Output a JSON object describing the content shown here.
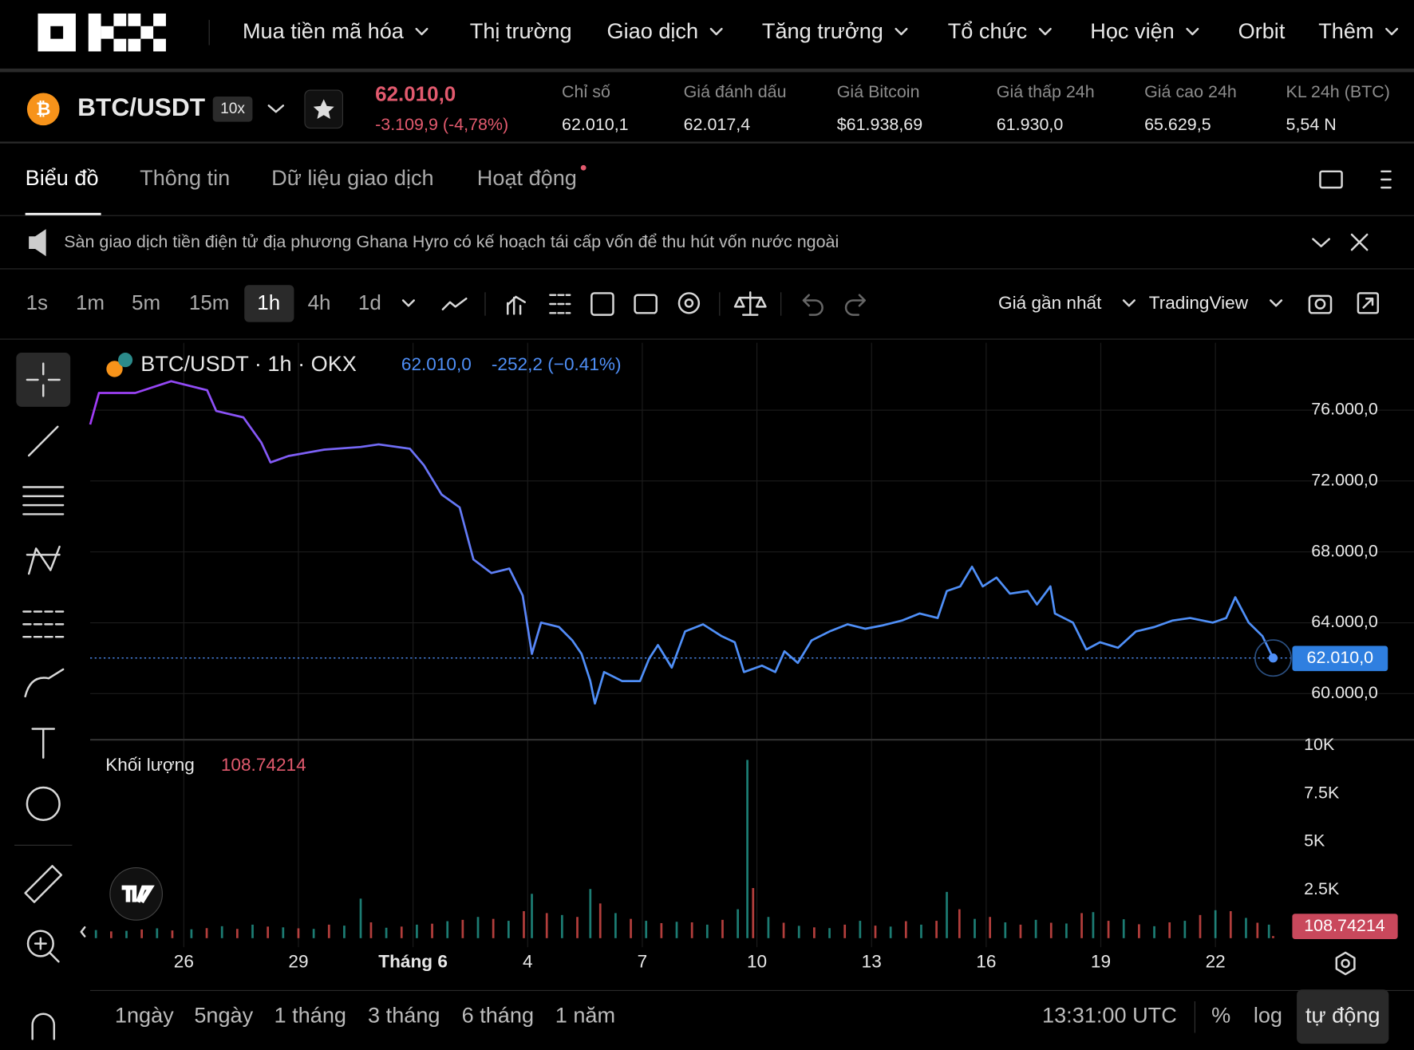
{
  "nav": {
    "items": [
      "Mua tiền mã hóa",
      "Thị trường",
      "Giao dịch",
      "Tăng trưởng",
      "Tổ chức",
      "Học viện",
      "Orbit",
      "Thêm"
    ]
  },
  "ticker": {
    "pair": "BTC/USDT",
    "leverage": "10x",
    "price": "62.010,0",
    "change": "-3.109,9 (-4,78%)",
    "stats": [
      {
        "label": "Chỉ số",
        "value": "62.010,1"
      },
      {
        "label": "Giá đánh dấu",
        "value": "62.017,4"
      },
      {
        "label": "Giá Bitcoin",
        "value": "$61.938,69"
      },
      {
        "label": "Giá thấp 24h",
        "value": "61.930,0"
      },
      {
        "label": "Giá cao 24h",
        "value": "65.629,5"
      },
      {
        "label": "KL 24h (BTC)",
        "value": "5,54 N"
      }
    ]
  },
  "tabs": [
    "Biểu đồ",
    "Thông tin",
    "Dữ liệu giao dịch",
    "Hoạt động"
  ],
  "news": "Sàn giao dịch tiền điện tử địa phương Ghana Hyro có kế hoạch tái cấp vốn để thu hút vốn nước ngoài",
  "toolbar": {
    "intervals": [
      "1s",
      "1m",
      "5m",
      "15m",
      "1h",
      "4h",
      "1d"
    ],
    "price_source": "Giá gần nhất",
    "chart_style": "TradingView"
  },
  "legend": {
    "symbol": "BTC/USDT · 1h · OKX",
    "change": "-252,2 (−0.41%)"
  },
  "chart_data": [
    {
      "type": "line",
      "gradient": [
        "#a13bf5",
        "#4f8ff7"
      ],
      "last_price": {
        "value": 62010,
        "label": "62.010,0"
      },
      "xlim": [
        23.55,
        54.94
      ],
      "xticks": [
        {
          "value": 26,
          "label": "26"
        },
        {
          "value": 29,
          "label": "29"
        },
        {
          "value": 32,
          "label": "Tháng 6"
        },
        {
          "value": 35,
          "label": "4"
        },
        {
          "value": 38,
          "label": "7"
        },
        {
          "value": 41,
          "label": "10"
        },
        {
          "value": 44,
          "label": "13"
        },
        {
          "value": 47,
          "label": "16"
        },
        {
          "value": 50,
          "label": "19"
        },
        {
          "value": 53,
          "label": "22"
        }
      ],
      "ylim": [
        57400,
        79800
      ],
      "yticks": [
        {
          "value": 60000,
          "label": "60.000,0"
        },
        {
          "value": 64000,
          "label": "64.000,0"
        },
        {
          "value": 68000,
          "label": "68.000,0"
        },
        {
          "value": 72000,
          "label": "72.000,0"
        },
        {
          "value": 76000,
          "label": "76.000,0"
        }
      ],
      "grid": true,
      "x": [
        23.55,
        23.78,
        24.73,
        25.67,
        26.61,
        26.85,
        27.56,
        28.03,
        28.27,
        28.74,
        29.68,
        30.63,
        31.1,
        31.92,
        32.28,
        32.75,
        33.22,
        33.58,
        34.05,
        34.52,
        34.87,
        35.11,
        35.35,
        35.82,
        36.17,
        36.41,
        36.64,
        36.76,
        37.0,
        37.47,
        37.94,
        38.18,
        38.41,
        38.77,
        39.12,
        39.59,
        40.07,
        40.42,
        40.66,
        41.13,
        41.48,
        41.72,
        42.07,
        42.43,
        42.9,
        43.37,
        43.84,
        44.31,
        44.79,
        45.26,
        45.73,
        45.97,
        46.32,
        46.63,
        46.91,
        47.27,
        47.62,
        48.09,
        48.33,
        48.68,
        48.8,
        49.27,
        49.62,
        49.98,
        50.45,
        50.92,
        51.4,
        51.87,
        52.34,
        52.93,
        53.28,
        53.52,
        53.87,
        54.23,
        54.51
      ],
      "values": [
        75190,
        76970,
        76970,
        77630,
        77120,
        75950,
        75590,
        74170,
        73050,
        73410,
        73770,
        73920,
        74070,
        73820,
        72900,
        71230,
        70510,
        67570,
        66810,
        67060,
        65540,
        62240,
        64010,
        63760,
        63000,
        62240,
        60710,
        59440,
        61220,
        60710,
        60710,
        61980,
        62740,
        61470,
        63510,
        63910,
        63250,
        62900,
        61220,
        61580,
        61220,
        62390,
        61730,
        63000,
        63510,
        63910,
        63660,
        63860,
        64120,
        64520,
        64270,
        65790,
        66050,
        67160,
        66050,
        66550,
        65640,
        65790,
        65030,
        66050,
        64520,
        64010,
        62490,
        62900,
        62590,
        63510,
        63760,
        64120,
        64270,
        64010,
        64270,
        65440,
        64010,
        63250,
        62010
      ]
    },
    {
      "type": "bar",
      "label": "Khối lượng",
      "ylim": [
        0,
        10300
      ],
      "yticks": [
        {
          "value": 2500,
          "label": "2.5K"
        },
        {
          "value": 5000,
          "label": "5K"
        },
        {
          "value": 7500,
          "label": "7.5K"
        },
        {
          "value": 10000,
          "label": "10K"
        }
      ],
      "series": [
        {
          "color": "#26a69a",
          "x": [
            23.7,
            24.5,
            25.3,
            26.2,
            27.0,
            27.8,
            28.6,
            29.4,
            30.2,
            30.63,
            31.3,
            32.1,
            32.9,
            33.7,
            34.5,
            35.11,
            35.9,
            36.64,
            37.3,
            38.1,
            38.9,
            39.7,
            40.5,
            40.75,
            41.3,
            42.1,
            42.9,
            43.7,
            44.5,
            45.3,
            45.97,
            46.7,
            47.5,
            48.3,
            49.1,
            49.8,
            50.6,
            51.4,
            52.2,
            53.0,
            53.8,
            54.4
          ],
          "values": [
            420,
            380,
            510,
            460,
            620,
            700,
            560,
            480,
            650,
            2050,
            540,
            700,
            880,
            1100,
            900,
            2300,
            1200,
            2550,
            1300,
            900,
            850,
            700,
            1500,
            9250,
            1100,
            640,
            520,
            900,
            600,
            700,
            2400,
            1000,
            820,
            950,
            760,
            1350,
            980,
            620,
            900,
            1450,
            1050,
            700
          ]
        },
        {
          "color": "#ef5350",
          "x": [
            24.1,
            24.9,
            25.7,
            26.6,
            27.4,
            28.2,
            29.0,
            29.8,
            30.9,
            31.7,
            32.5,
            33.3,
            34.1,
            34.9,
            35.5,
            36.3,
            36.9,
            37.7,
            38.5,
            39.3,
            40.1,
            40.9,
            41.7,
            42.5,
            43.3,
            44.1,
            44.9,
            45.7,
            46.3,
            47.1,
            47.9,
            48.7,
            49.5,
            50.2,
            51.0,
            51.8,
            52.6,
            53.4,
            54.1,
            54.51
          ],
          "values": [
            350,
            450,
            400,
            520,
            480,
            600,
            510,
            700,
            820,
            600,
            750,
            950,
            1000,
            1400,
            1300,
            1100,
            1800,
            1000,
            780,
            820,
            950,
            2600,
            800,
            560,
            700,
            650,
            880,
            900,
            1500,
            1100,
            700,
            800,
            1300,
            900,
            720,
            820,
            1200,
            1400,
            800,
            108.74214
          ]
        }
      ]
    }
  ],
  "footer": {
    "ranges": [
      "1ngày",
      "5ngày",
      "1 tháng",
      "3 tháng",
      "6 tháng",
      "1 năm"
    ],
    "time": "13:31:00 UTC",
    "percent": "%",
    "log": "log",
    "auto": "tự động"
  }
}
